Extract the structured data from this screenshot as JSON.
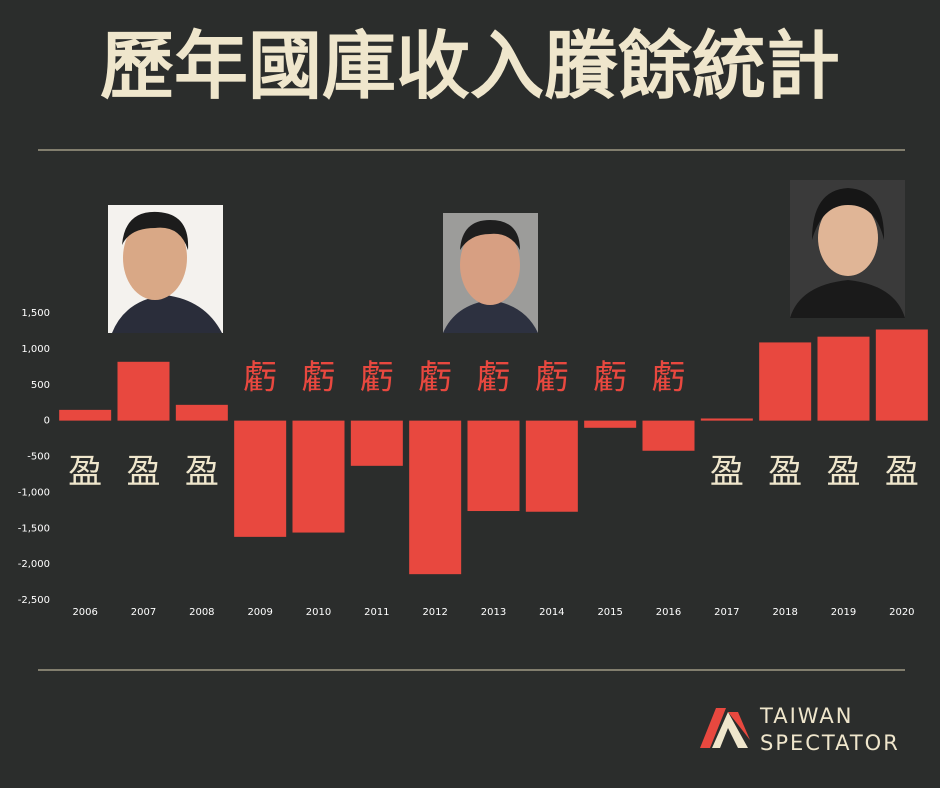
{
  "chart_data": {
    "type": "bar",
    "title": "歷年國庫收入賸餘統計",
    "categories": [
      "2006",
      "2007",
      "2008",
      "2009",
      "2010",
      "2011",
      "2012",
      "2013",
      "2014",
      "2015",
      "2016",
      "2017",
      "2018",
      "2019",
      "2020"
    ],
    "values": [
      150,
      820,
      220,
      -1620,
      -1560,
      -630,
      -2140,
      -1260,
      -1270,
      -100,
      -420,
      30,
      1090,
      1170,
      1270
    ],
    "annotations": [
      "盈",
      "盈",
      "盈",
      "虧",
      "虧",
      "虧",
      "虧",
      "虧",
      "虧",
      "虧",
      "虧",
      "盈",
      "盈",
      "盈",
      "盈"
    ],
    "color": "#e8483f",
    "ylim": [
      -2500,
      1500
    ],
    "yticks": [
      {
        "value": -2500,
        "label": "-2,500"
      },
      {
        "value": -2000,
        "label": "-2,000"
      },
      {
        "value": -1500,
        "label": "-1,500"
      },
      {
        "value": -1000,
        "label": "-1,000"
      },
      -500,
      0,
      500,
      {
        "value": 1000,
        "label": "1,000"
      },
      {
        "value": 1500,
        "label": "1,500"
      }
    ],
    "grid": false
  },
  "logo": {
    "line1": "TAIWAN",
    "line2": "SPECTATOR"
  }
}
